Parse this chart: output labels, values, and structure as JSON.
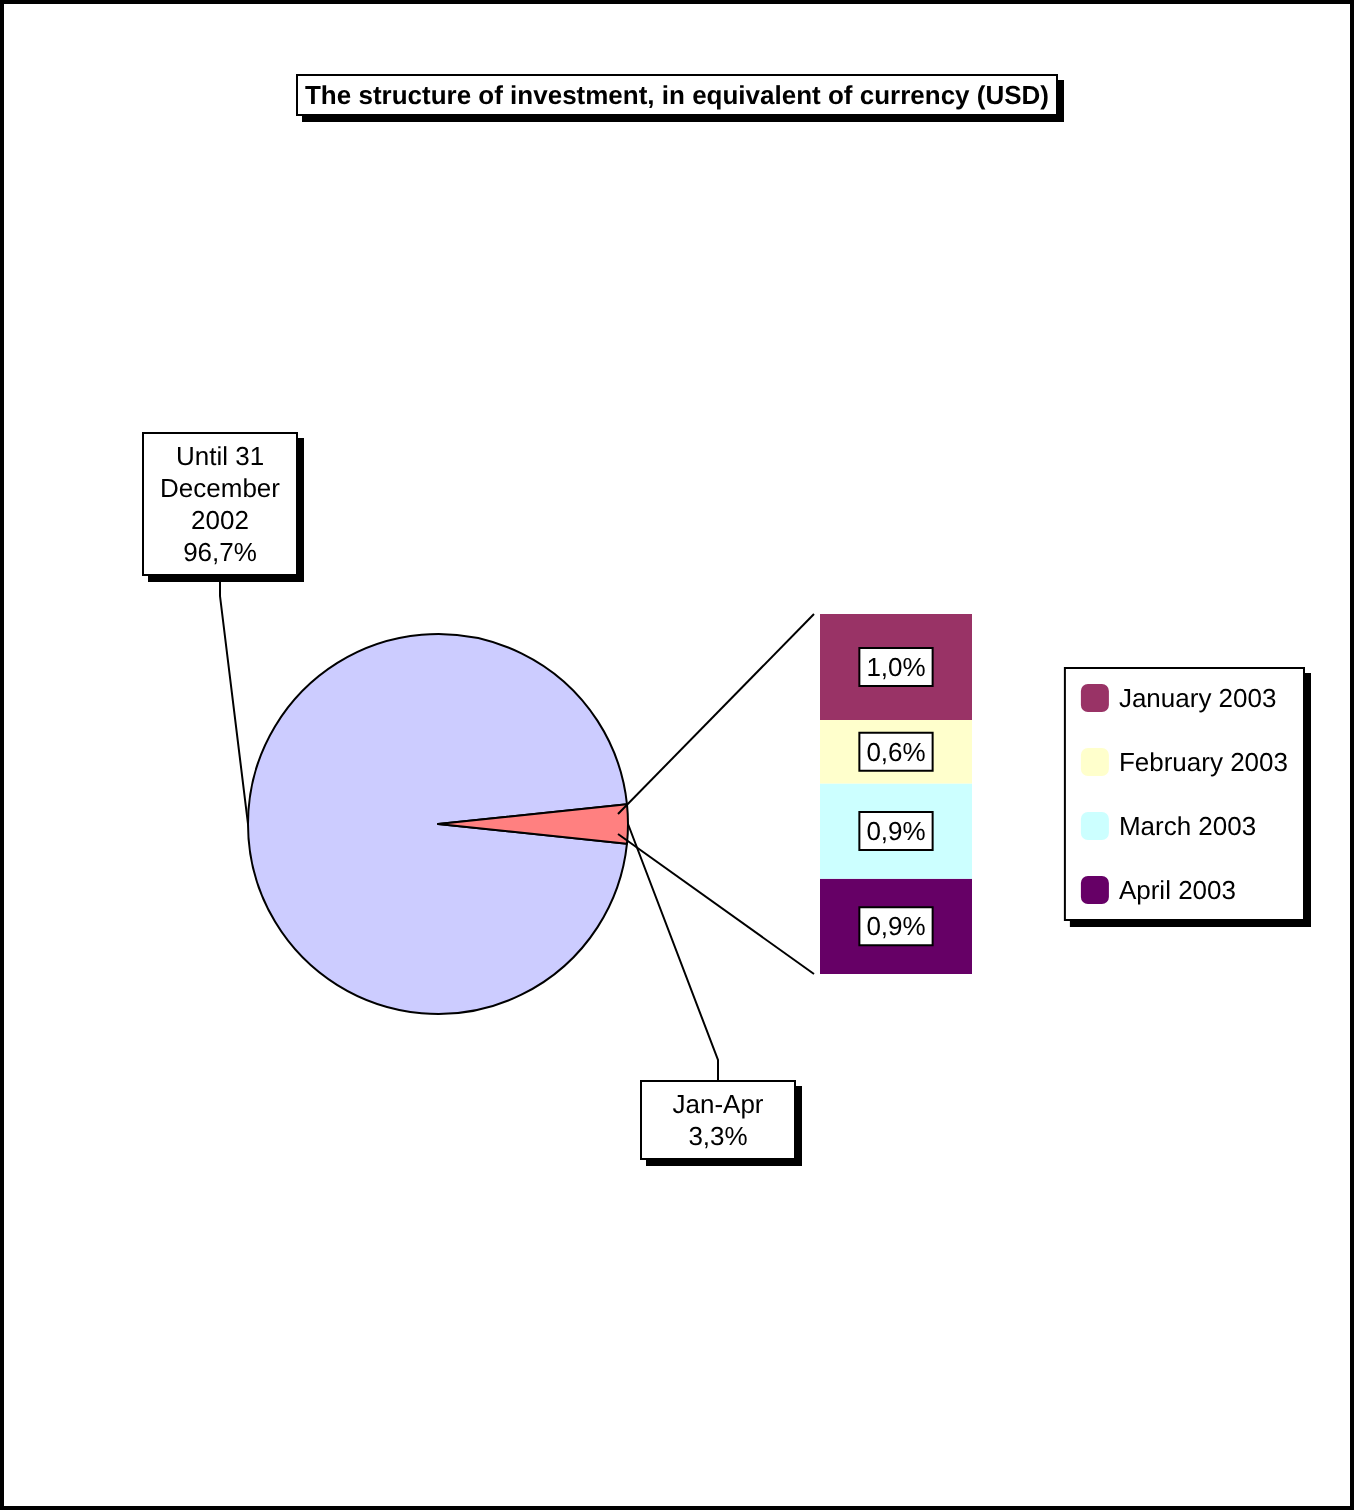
{
  "chart_data": [
    {
      "type": "pie",
      "title": "The structure of investment, in equivalent of currency (USD)",
      "categories": [
        "Until 31 December 2002",
        "Jan-Apr"
      ],
      "values": [
        96.7,
        3.3
      ],
      "colors": [
        "#ccccff",
        "#ff8080"
      ],
      "value_labels": [
        "96,7%",
        "3,3%"
      ],
      "legend": false
    },
    {
      "type": "bar",
      "stacked": true,
      "categories": [
        null
      ],
      "legend": "right",
      "series": [
        {
          "name": "April 2003",
          "color": "#660066",
          "values": [
            0.9
          ],
          "value_labels": [
            "0,9%"
          ]
        },
        {
          "name": "March 2003",
          "color": "#ccffff",
          "values": [
            0.9
          ],
          "value_labels": [
            "0,9%"
          ]
        },
        {
          "name": "February 2003",
          "color": "#ffffcc",
          "values": [
            0.6
          ],
          "value_labels": [
            "0,6%"
          ]
        },
        {
          "name": "January 2003",
          "color": "#993366",
          "values": [
            1.0
          ],
          "value_labels": [
            "1,0%"
          ]
        }
      ]
    }
  ]
}
